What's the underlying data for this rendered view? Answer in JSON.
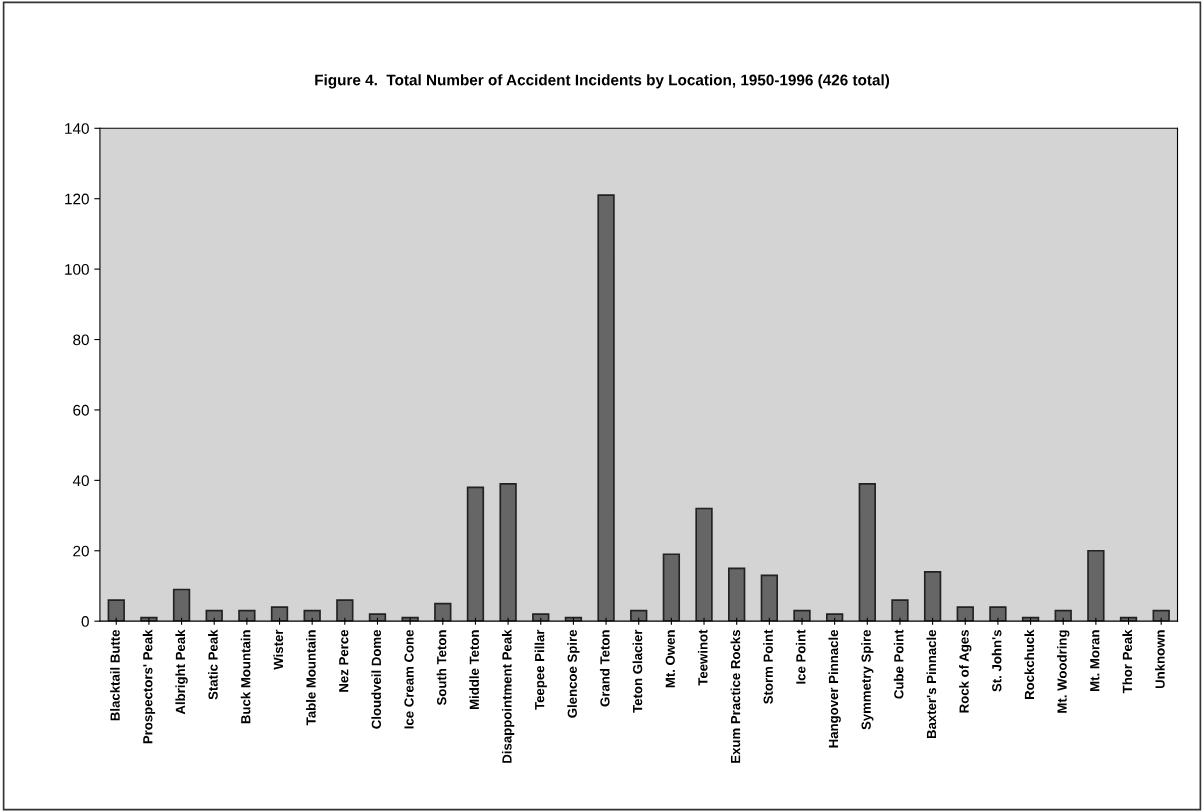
{
  "chart_data": {
    "type": "bar",
    "title": "Figure 4.  Total Number of Accident Incidents by Location, 1950-1996 (426 total)",
    "categories": [
      "Blacktail Butte",
      "Prospectors' Peak",
      "Albright Peak",
      "Static Peak",
      "Buck Mountain",
      "Wister",
      "Table Mountain",
      "Nez Perce",
      "Cloudveil Dome",
      "Ice Cream Cone",
      "South Teton",
      "Middle Teton",
      "Disappointment Peak",
      "Teepee Pillar",
      "Glencoe Spire",
      "Grand Teton",
      "Teton Glacier",
      "Mt. Owen",
      "Teewinot",
      "Exum Practice Rocks",
      "Storm Point",
      "Ice Point",
      "Hangover Pinnacle",
      "Symmetry Spire",
      "Cube Point",
      "Baxter's Pinnacle",
      "Rock of Ages",
      "St. John's",
      "Rockchuck",
      "Mt. Woodring",
      "Mt. Moran",
      "Thor Peak",
      "Unknown"
    ],
    "values": [
      6,
      1,
      9,
      3,
      3,
      4,
      3,
      6,
      2,
      1,
      5,
      38,
      39,
      2,
      1,
      121,
      3,
      19,
      32,
      15,
      13,
      3,
      2,
      39,
      6,
      14,
      4,
      4,
      1,
      3,
      20,
      1,
      3
    ],
    "color": "#666666",
    "ylim": [
      0,
      140
    ],
    "yticks": [
      0,
      20,
      40,
      60,
      80,
      100,
      120,
      140
    ],
    "grid": false
  }
}
